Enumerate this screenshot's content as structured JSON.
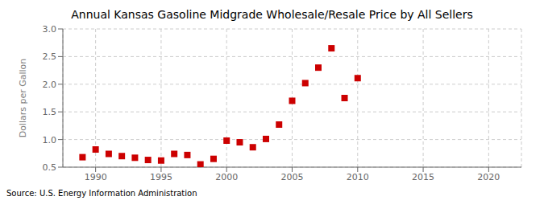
{
  "chart_data": {
    "type": "scatter",
    "title": "Annual Kansas Gasoline Midgrade Wholesale/Resale Price by All Sellers",
    "y_label": "Dollars per Gallon",
    "annotations": [
      "Source: U.S. Energy Information Administration"
    ],
    "x": [
      1989,
      1990,
      1991,
      1992,
      1993,
      1994,
      1995,
      1996,
      1997,
      1998,
      1999,
      2000,
      2001,
      2002,
      2003,
      2004,
      2005,
      2006,
      2007,
      2008,
      2009,
      2010
    ],
    "values": [
      0.68,
      0.82,
      0.74,
      0.7,
      0.67,
      0.63,
      0.62,
      0.74,
      0.72,
      0.55,
      0.65,
      0.98,
      0.95,
      0.86,
      1.01,
      1.27,
      1.7,
      2.02,
      2.3,
      2.65,
      1.75,
      2.11
    ],
    "color": "#cc0000",
    "marker": "square",
    "xlim": [
      1987.5,
      2022.5
    ],
    "ylim": [
      0.5,
      3.0
    ],
    "xticks": [
      1990,
      1995,
      2000,
      2005,
      2010,
      2015,
      2020
    ],
    "yticks": [
      0.5,
      {
        "value": 1.0,
        "label": "1.0"
      },
      1.5,
      {
        "value": 2.0,
        "label": "2.0"
      },
      2.5,
      {
        "value": 3.0,
        "label": "3.0"
      }
    ],
    "grid": true
  }
}
